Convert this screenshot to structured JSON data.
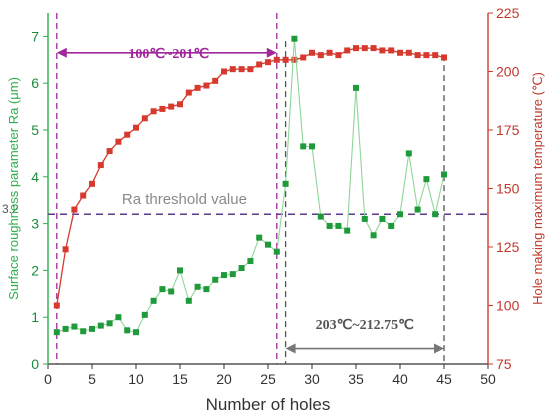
{
  "chart_data": {
    "type": "line",
    "xlabel": "Number of holes",
    "ylabel_left": "Surface roughness parameter Ra (μm)",
    "ylabel_right": "Hole making maximum temperature (℃)",
    "xlim": [
      0,
      50
    ],
    "ylim_left": [
      0,
      7.5
    ],
    "ylim_right": [
      75,
      225
    ],
    "x_ticks": [
      0,
      5,
      10,
      15,
      20,
      25,
      30,
      35,
      40,
      45,
      50
    ],
    "y_left_ticks": [
      0,
      1,
      2,
      3,
      4,
      5,
      6,
      7
    ],
    "y_right_ticks": [
      75,
      100,
      125,
      150,
      175,
      200,
      225
    ],
    "colors": {
      "roughness": "#2db04b",
      "temperature": "#d63a2f",
      "threshold": "#5c3a8a",
      "region1": "#a0289a",
      "region2": "#555555"
    },
    "series": [
      {
        "axis": "left",
        "x": [
          1,
          2,
          3,
          4,
          5,
          6,
          7,
          8,
          9,
          10,
          11,
          12,
          13,
          14,
          15,
          16,
          17,
          18,
          19,
          20,
          21,
          22,
          23,
          24,
          25,
          26,
          27,
          28,
          29,
          30,
          31,
          32,
          33,
          34,
          35,
          36,
          37,
          38,
          39,
          40,
          41,
          42,
          43,
          44,
          45
        ],
        "values": [
          0.68,
          0.75,
          0.8,
          0.7,
          0.75,
          0.82,
          0.87,
          1.0,
          0.72,
          0.68,
          1.05,
          1.35,
          1.6,
          1.55,
          2.0,
          1.35,
          1.65,
          1.6,
          1.8,
          1.9,
          1.92,
          2.05,
          2.2,
          2.7,
          2.55,
          2.4,
          3.85,
          6.95,
          4.65,
          4.65,
          3.15,
          2.95,
          2.95,
          2.85,
          5.9,
          3.1,
          2.75,
          3.1,
          2.95,
          3.2,
          4.5,
          3.3,
          3.95,
          3.2,
          4.05
        ]
      },
      {
        "axis": "right",
        "x": [
          1,
          2,
          3,
          4,
          5,
          6,
          7,
          8,
          9,
          10,
          11,
          12,
          13,
          14,
          15,
          16,
          17,
          18,
          19,
          20,
          21,
          22,
          23,
          24,
          25,
          26,
          27,
          28,
          29,
          30,
          31,
          32,
          33,
          34,
          35,
          36,
          37,
          38,
          39,
          40,
          41,
          42,
          43,
          44,
          45
        ],
        "values": [
          100,
          124,
          141,
          147,
          152,
          160,
          166,
          170,
          173,
          176,
          180,
          183,
          184,
          185,
          186,
          191,
          193,
          194,
          196,
          200,
          201,
          201,
          201,
          203,
          204,
          205,
          205,
          205,
          206,
          208,
          207,
          208,
          207,
          209,
          210,
          210,
          210,
          209,
          209,
          208,
          208,
          207,
          207,
          207,
          206
        ]
      }
    ],
    "threshold": {
      "value": 3.2,
      "label": "Ra threshold value",
      "tick_label": "3.2"
    },
    "regions": [
      {
        "x_start": 1,
        "x_end": 26,
        "label": "100℃~201℃"
      },
      {
        "x_start": 27,
        "x_end": 45,
        "label": "203℃~212.75℃"
      }
    ]
  }
}
